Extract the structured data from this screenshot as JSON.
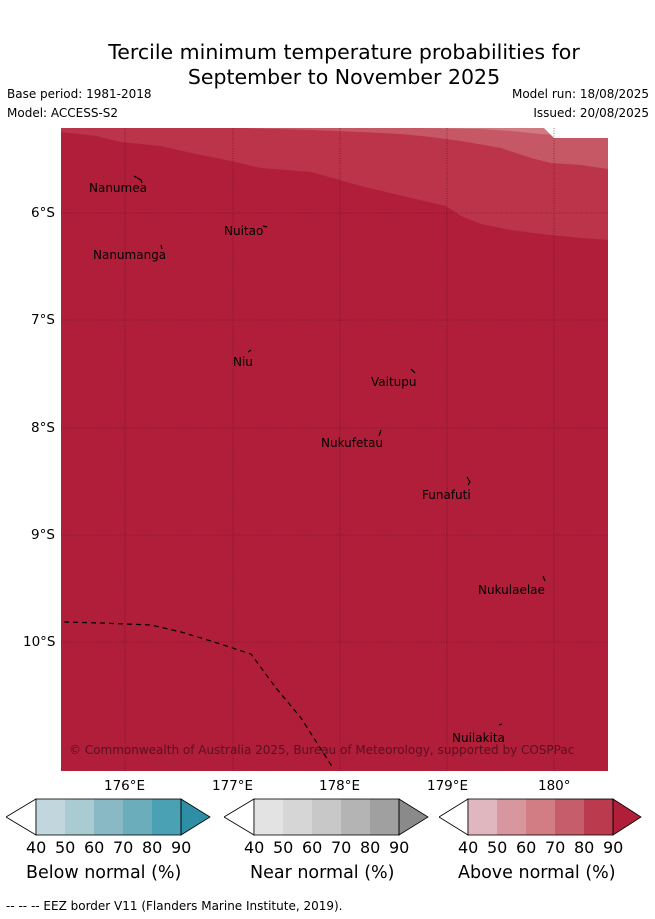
{
  "title_line1": "Tercile minimum temperature probabilities for",
  "title_line2": "September to November 2025",
  "base_period": "Base period: 1981-2018",
  "model": "Model: ACCESS-S2",
  "model_run": "Model run: 18/08/2025",
  "issued": "Issued: 20/08/2025",
  "map": {
    "lon_labels": [
      "176°E",
      "177°E",
      "178°E",
      "179°E",
      "180°"
    ],
    "lat_labels": [
      "6°S",
      "7°S",
      "8°S",
      "9°S",
      "10°S"
    ],
    "places": [
      "Nanumea",
      "Nuitao",
      "Nanumanga",
      "Niu",
      "Vaitupu",
      "Nukufetau",
      "Funafuti",
      "Nukulaelae",
      "Nuilakita"
    ],
    "copyright": "© Commonwealth of Australia 2025, Bureau of Meteorology, supported by COSPPac",
    "dominant_category": "Above normal",
    "dominant_level": "90",
    "colors": {
      "above_90": "#b01e39",
      "above_80": "#bc3449",
      "above_70": "#c65866",
      "above_60": "#d07b82"
    }
  },
  "colorbars": [
    {
      "label": "Below normal (%)",
      "ticks": [
        "40",
        "50",
        "60",
        "70",
        "80",
        "90"
      ],
      "colors": [
        "#c1d6dd",
        "#a9cbd1",
        "#8ab9c6",
        "#6cadbc",
        "#4aa1b3",
        "#2d8ea6"
      ]
    },
    {
      "label": "Near normal (%)",
      "ticks": [
        "40",
        "50",
        "60",
        "70",
        "80",
        "90"
      ],
      "colors": [
        "#e3e3e3",
        "#d6d6d6",
        "#c8c8c8",
        "#b4b4b4",
        "#a0a0a0",
        "#8a8a8a"
      ]
    },
    {
      "label": "Above normal (%)",
      "ticks": [
        "40",
        "50",
        "60",
        "70",
        "80",
        "90"
      ],
      "colors": [
        "#e0b7bf",
        "#d8969e",
        "#d27c84",
        "#c55d6a",
        "#bb3a4e",
        "#b01e39"
      ]
    }
  ],
  "footer": "-- -- -- EEZ border V11 (Flanders Marine Institute, 2019)."
}
